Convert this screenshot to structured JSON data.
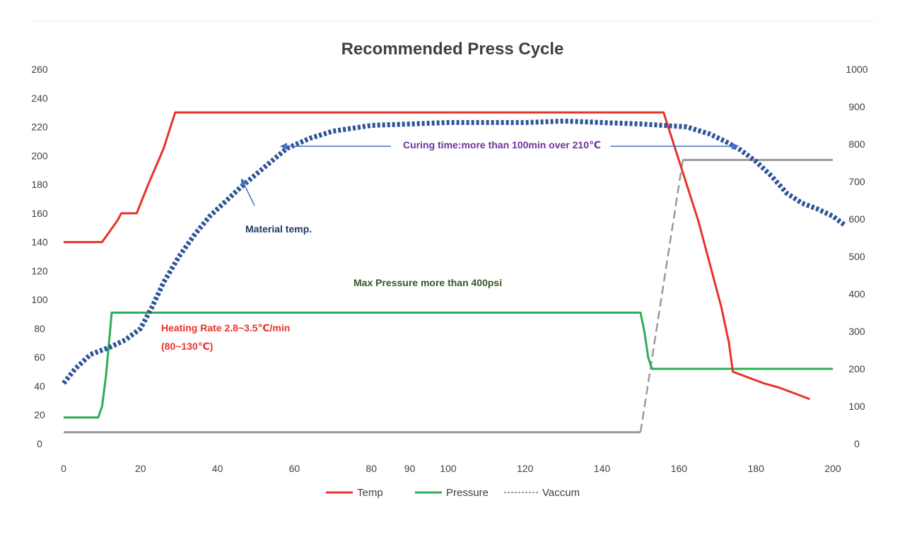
{
  "chart_data": {
    "type": "line",
    "title": "Recommended Press Cycle",
    "xlabel": "",
    "ylabel": "",
    "y2label": "",
    "xlim": [
      0,
      200
    ],
    "ylim": [
      0,
      260
    ],
    "y2lim": [
      0,
      1000
    ],
    "x_ticks": [
      0,
      20,
      40,
      60,
      80,
      90,
      100,
      120,
      140,
      160,
      180,
      200
    ],
    "y_ticks": [
      0,
      20,
      40,
      60,
      80,
      100,
      120,
      140,
      160,
      180,
      200,
      220,
      240,
      260
    ],
    "y2_ticks": [
      0,
      100,
      200,
      300,
      400,
      500,
      600,
      700,
      800,
      900,
      1000
    ],
    "grid": false,
    "legend_position": "bottom",
    "series": [
      {
        "name": "Temp",
        "axis": "left",
        "color": "#e8322a",
        "style": "solid",
        "points": [
          [
            0,
            140
          ],
          [
            10,
            140
          ],
          [
            14,
            155
          ],
          [
            15,
            160
          ],
          [
            19,
            160
          ],
          [
            22,
            180
          ],
          [
            26,
            205
          ],
          [
            29,
            230
          ],
          [
            60,
            230
          ],
          [
            100,
            230
          ],
          [
            156,
            230
          ],
          [
            159,
            205
          ],
          [
            162,
            180
          ],
          [
            165,
            155
          ],
          [
            168,
            125
          ],
          [
            171,
            95
          ],
          [
            173,
            70
          ],
          [
            174,
            50
          ],
          [
            178,
            46
          ],
          [
            182,
            42
          ],
          [
            186,
            39
          ],
          [
            190,
            35
          ],
          [
            194,
            31
          ]
        ]
      },
      {
        "name": "Pressure",
        "axis": "right",
        "color": "#2cae54",
        "style": "solid",
        "points": [
          [
            0,
            70
          ],
          [
            9,
            70
          ],
          [
            10,
            100
          ],
          [
            11,
            180
          ],
          [
            12.5,
            350
          ],
          [
            14,
            350
          ],
          [
            100,
            350
          ],
          [
            150,
            350
          ],
          [
            151,
            300
          ],
          [
            152,
            230
          ],
          [
            153,
            200
          ],
          [
            180,
            200
          ],
          [
            200,
            200
          ]
        ]
      },
      {
        "name": "Vaccum",
        "axis": "left",
        "color": "#9a9a9a",
        "style": "solid-then-dashed",
        "points": [
          [
            0,
            8
          ],
          [
            150,
            8
          ],
          [
            161,
            197
          ],
          [
            200,
            197
          ]
        ]
      },
      {
        "name": "Material temp.",
        "axis": "left",
        "color": "#2f5597",
        "style": "dotted",
        "in_legend": false,
        "points": [
          [
            0,
            42
          ],
          [
            3,
            52
          ],
          [
            7,
            62
          ],
          [
            12,
            67
          ],
          [
            16,
            72
          ],
          [
            20,
            80
          ],
          [
            23,
            95
          ],
          [
            26,
            112
          ],
          [
            30,
            130
          ],
          [
            34,
            145
          ],
          [
            38,
            158
          ],
          [
            42,
            168
          ],
          [
            46,
            178
          ],
          [
            50,
            187
          ],
          [
            54,
            196
          ],
          [
            58,
            205
          ],
          [
            64,
            212
          ],
          [
            70,
            217
          ],
          [
            80,
            221
          ],
          [
            90,
            222
          ],
          [
            100,
            223
          ],
          [
            110,
            223
          ],
          [
            120,
            223
          ],
          [
            130,
            224
          ],
          [
            140,
            223
          ],
          [
            150,
            222
          ],
          [
            156,
            221
          ],
          [
            162,
            220
          ],
          [
            168,
            215
          ],
          [
            172,
            210
          ],
          [
            176,
            204
          ],
          [
            180,
            196
          ],
          [
            184,
            186
          ],
          [
            188,
            174
          ],
          [
            192,
            167
          ],
          [
            196,
            163
          ],
          [
            200,
            158
          ],
          [
            203,
            152
          ]
        ]
      }
    ],
    "annotations": [
      {
        "text": "Curing time:more than 100min over 210℃",
        "color": "#7030a0"
      },
      {
        "text": "Material temp.",
        "color": "#1f3864"
      },
      {
        "text": "Max Pressure more than 400psi",
        "color": "#375623"
      },
      {
        "text": "Heating Rate 2.8~3.5℃/min",
        "color": "#e8322a"
      },
      {
        "text": "(80~130℃)",
        "color": "#e8322a"
      }
    ]
  }
}
